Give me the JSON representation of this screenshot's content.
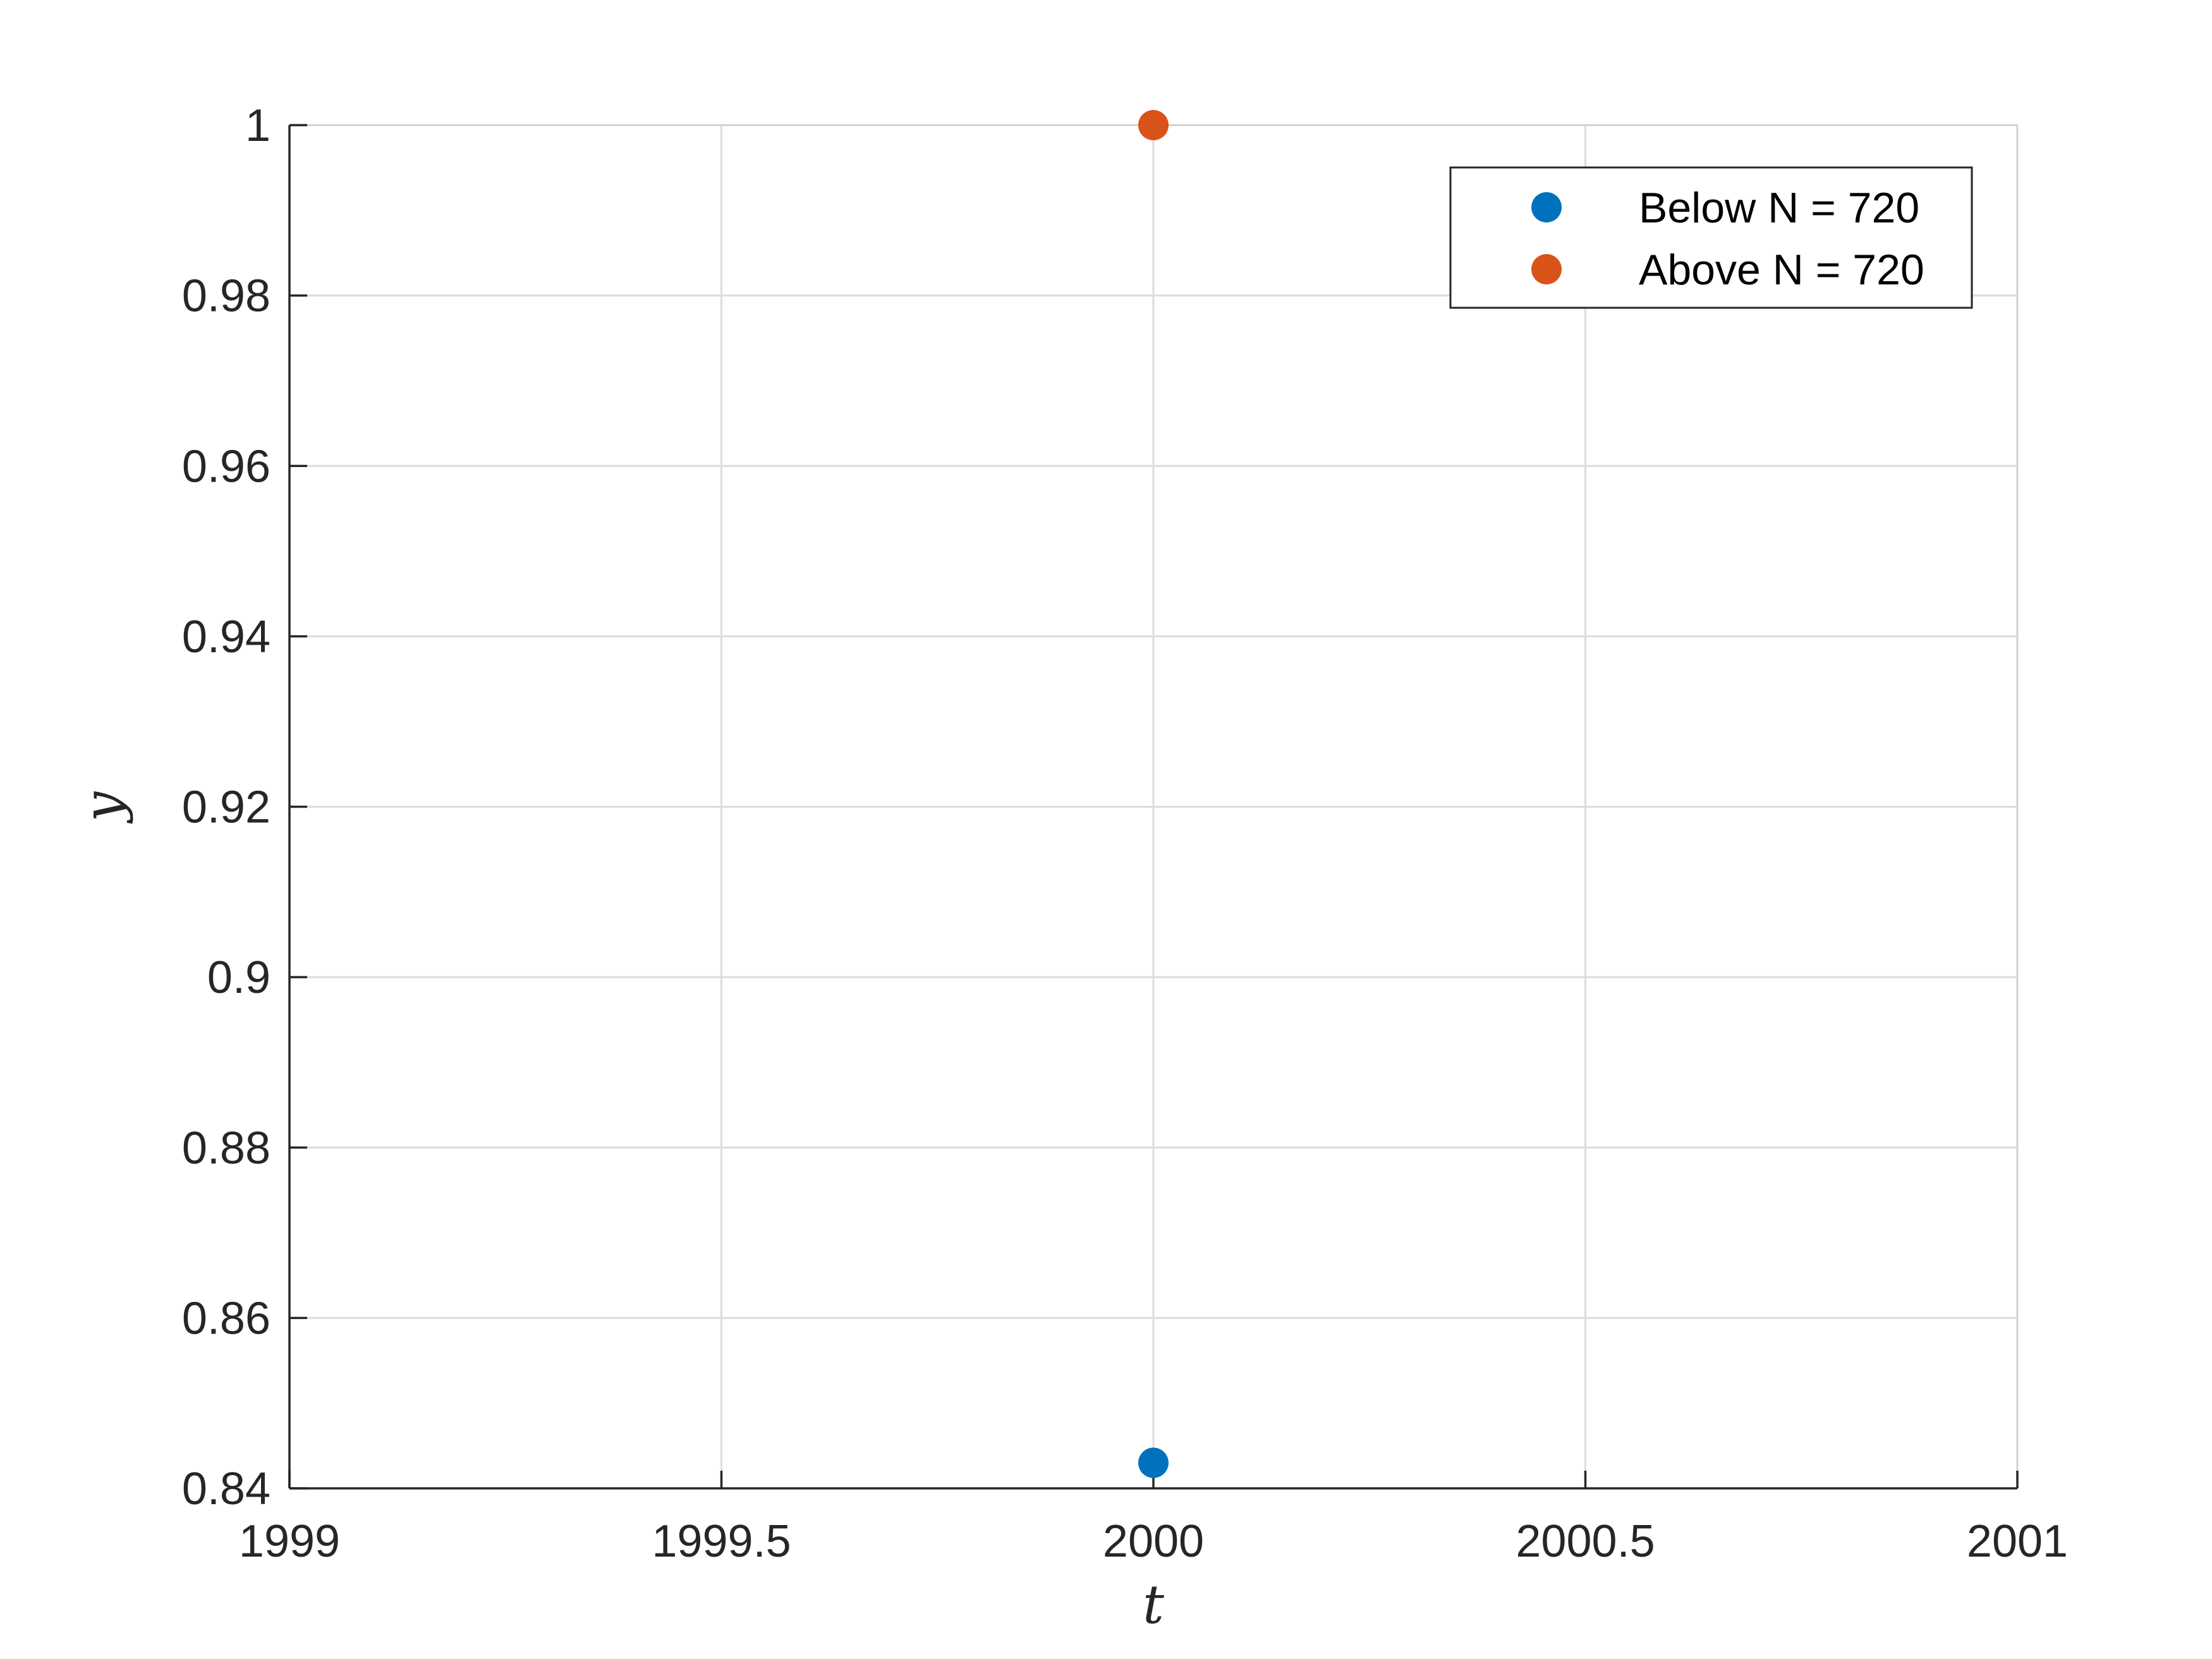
{
  "chart_data": {
    "type": "scatter",
    "title": "",
    "xlabel": "t",
    "ylabel": "y",
    "xlim": [
      1999,
      2001
    ],
    "ylim": [
      0.84,
      1
    ],
    "x_ticks": [
      1999,
      1999.5,
      2000,
      2000.5,
      2001
    ],
    "x_tick_labels": [
      "1999",
      "1999.5",
      "2000",
      "2000.5",
      "2001"
    ],
    "y_ticks": [
      0.84,
      0.86,
      0.88,
      0.9,
      0.92,
      0.94,
      0.96,
      0.98,
      1
    ],
    "y_tick_labels": [
      "0.84",
      "0.86",
      "0.88",
      "0.9",
      "0.92",
      "0.94",
      "0.96",
      "0.98",
      "1"
    ],
    "grid": true,
    "legend_position": "top-right",
    "series": [
      {
        "name": "Below N = 720",
        "color": "#0072BD",
        "points": [
          {
            "x": 2000,
            "y": 0.843
          }
        ]
      },
      {
        "name": "Above N = 720",
        "color": "#D95319",
        "points": [
          {
            "x": 2000,
            "y": 1
          }
        ]
      }
    ]
  }
}
